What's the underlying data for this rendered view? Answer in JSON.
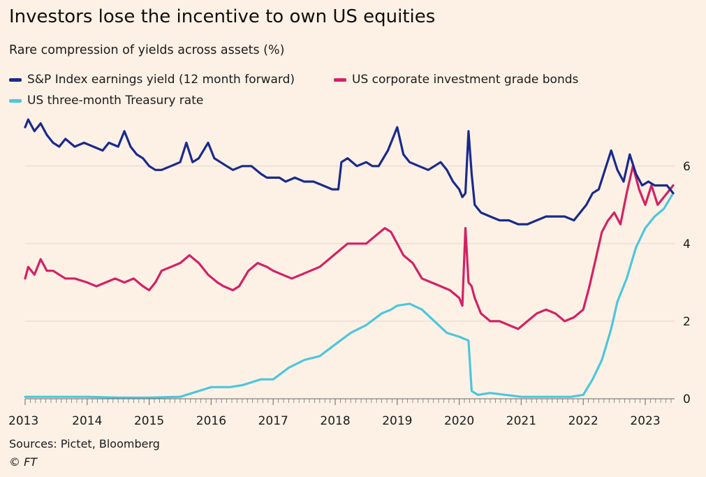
{
  "header": {
    "title": "Investors lose the incentive to own US equities",
    "subtitle": "Rare compression of yields across assets (%)"
  },
  "footer": {
    "sources": "Sources: Pictet, Bloomberg",
    "copyright": "© FT"
  },
  "chart_data": {
    "type": "line",
    "title": "Investors lose the incentive to own US equities",
    "subtitle": "Rare compression of yields across assets (%)",
    "xlabel": "",
    "ylabel": "",
    "xlim": [
      2013.0,
      2023.45
    ],
    "ylim": [
      0,
      7.4
    ],
    "y_ticks": [
      0,
      2,
      4,
      6
    ],
    "y_tick_labels": [
      "0",
      "2",
      "4",
      "6"
    ],
    "y_axis_side": "right",
    "x_ticks": [
      2013,
      2014,
      2015,
      2016,
      2017,
      2018,
      2019,
      2020,
      2021,
      2022,
      2023
    ],
    "x_tick_labels": [
      "2013",
      "2014",
      "2015",
      "2016",
      "2017",
      "2018",
      "2019",
      "2020",
      "2021",
      "2022",
      "2023"
    ],
    "grid": "horizontal",
    "legend_position": "top",
    "background_color": "#fdf1e6",
    "series": [
      {
        "name": "S&P Index earnings yield (12 month forward)",
        "color": "#1a2a8c",
        "x": [
          2013.0,
          2013.05,
          2013.15,
          2013.25,
          2013.35,
          2013.45,
          2013.55,
          2013.65,
          2013.8,
          2013.95,
          2014.1,
          2014.25,
          2014.35,
          2014.5,
          2014.6,
          2014.7,
          2014.8,
          2014.9,
          2015.0,
          2015.1,
          2015.2,
          2015.35,
          2015.5,
          2015.6,
          2015.7,
          2015.8,
          2015.95,
          2016.05,
          2016.15,
          2016.25,
          2016.35,
          2016.5,
          2016.65,
          2016.8,
          2016.9,
          2017.0,
          2017.1,
          2017.2,
          2017.35,
          2017.5,
          2017.65,
          2017.8,
          2017.95,
          2018.05,
          2018.1,
          2018.2,
          2018.35,
          2018.5,
          2018.6,
          2018.7,
          2018.85,
          2018.95,
          2019.0,
          2019.1,
          2019.2,
          2019.35,
          2019.5,
          2019.6,
          2019.7,
          2019.8,
          2019.9,
          2020.0,
          2020.05,
          2020.1,
          2020.15,
          2020.2,
          2020.25,
          2020.35,
          2020.5,
          2020.65,
          2020.8,
          2020.95,
          2021.1,
          2021.25,
          2021.4,
          2021.55,
          2021.7,
          2021.85,
          2021.95,
          2022.05,
          2022.15,
          2022.25,
          2022.35,
          2022.45,
          2022.55,
          2022.65,
          2022.75,
          2022.85,
          2022.95,
          2023.05,
          2023.15,
          2023.25,
          2023.35,
          2023.45
        ],
        "values": [
          7.0,
          7.2,
          6.9,
          7.1,
          6.8,
          6.6,
          6.5,
          6.7,
          6.5,
          6.6,
          6.5,
          6.4,
          6.6,
          6.5,
          6.9,
          6.5,
          6.3,
          6.2,
          6.0,
          5.9,
          5.9,
          6.0,
          6.1,
          6.6,
          6.1,
          6.2,
          6.6,
          6.2,
          6.1,
          6.0,
          5.9,
          6.0,
          6.0,
          5.8,
          5.7,
          5.7,
          5.7,
          5.6,
          5.7,
          5.6,
          5.6,
          5.5,
          5.4,
          5.4,
          6.1,
          6.2,
          6.0,
          6.1,
          6.0,
          6.0,
          6.4,
          6.8,
          7.0,
          6.3,
          6.1,
          6.0,
          5.9,
          6.0,
          6.1,
          5.9,
          5.6,
          5.4,
          5.2,
          5.3,
          6.9,
          5.8,
          5.0,
          4.8,
          4.7,
          4.6,
          4.6,
          4.5,
          4.5,
          4.6,
          4.7,
          4.7,
          4.7,
          4.6,
          4.8,
          5.0,
          5.3,
          5.4,
          5.9,
          6.4,
          5.9,
          5.6,
          6.3,
          5.8,
          5.5,
          5.6,
          5.5,
          5.5,
          5.5,
          5.3
        ]
      },
      {
        "name": "US corporate investment grade bonds",
        "color": "#d42163",
        "x": [
          2013.0,
          2013.05,
          2013.15,
          2013.25,
          2013.35,
          2013.45,
          2013.55,
          2013.65,
          2013.8,
          2014.0,
          2014.15,
          2014.3,
          2014.45,
          2014.6,
          2014.75,
          2014.9,
          2015.0,
          2015.1,
          2015.2,
          2015.35,
          2015.5,
          2015.65,
          2015.8,
          2015.95,
          2016.1,
          2016.2,
          2016.35,
          2016.45,
          2016.6,
          2016.75,
          2016.9,
          2017.0,
          2017.15,
          2017.3,
          2017.45,
          2017.6,
          2017.75,
          2017.9,
          2018.05,
          2018.2,
          2018.35,
          2018.5,
          2018.65,
          2018.8,
          2018.9,
          2019.0,
          2019.1,
          2019.25,
          2019.4,
          2019.55,
          2019.7,
          2019.85,
          2020.0,
          2020.05,
          2020.1,
          2020.15,
          2020.2,
          2020.25,
          2020.35,
          2020.5,
          2020.65,
          2020.8,
          2020.95,
          2021.1,
          2021.25,
          2021.4,
          2021.55,
          2021.7,
          2021.85,
          2022.0,
          2022.1,
          2022.2,
          2022.3,
          2022.4,
          2022.5,
          2022.6,
          2022.7,
          2022.8,
          2022.9,
          2023.0,
          2023.1,
          2023.2,
          2023.3,
          2023.45
        ],
        "values": [
          3.1,
          3.4,
          3.2,
          3.6,
          3.3,
          3.3,
          3.2,
          3.1,
          3.1,
          3.0,
          2.9,
          3.0,
          3.1,
          3.0,
          3.1,
          2.9,
          2.8,
          3.0,
          3.3,
          3.4,
          3.5,
          3.7,
          3.5,
          3.2,
          3.0,
          2.9,
          2.8,
          2.9,
          3.3,
          3.5,
          3.4,
          3.3,
          3.2,
          3.1,
          3.2,
          3.3,
          3.4,
          3.6,
          3.8,
          4.0,
          4.0,
          4.0,
          4.2,
          4.4,
          4.3,
          4.0,
          3.7,
          3.5,
          3.1,
          3.0,
          2.9,
          2.8,
          2.6,
          2.4,
          4.4,
          3.0,
          2.9,
          2.6,
          2.2,
          2.0,
          2.0,
          1.9,
          1.8,
          2.0,
          2.2,
          2.3,
          2.2,
          2.0,
          2.1,
          2.3,
          2.9,
          3.6,
          4.3,
          4.6,
          4.8,
          4.5,
          5.3,
          6.0,
          5.4,
          5.0,
          5.5,
          5.0,
          5.2,
          5.5
        ]
      },
      {
        "name": "US three-month Treasury rate",
        "color": "#4dc6dc",
        "x": [
          2013.0,
          2013.5,
          2014.0,
          2014.5,
          2015.0,
          2015.5,
          2015.9,
          2016.0,
          2016.3,
          2016.5,
          2016.8,
          2017.0,
          2017.25,
          2017.5,
          2017.75,
          2018.0,
          2018.25,
          2018.5,
          2018.75,
          2018.9,
          2019.0,
          2019.2,
          2019.4,
          2019.6,
          2019.8,
          2020.0,
          2020.15,
          2020.2,
          2020.3,
          2020.5,
          2021.0,
          2021.5,
          2021.8,
          2022.0,
          2022.15,
          2022.3,
          2022.45,
          2022.55,
          2022.7,
          2022.85,
          2023.0,
          2023.15,
          2023.3,
          2023.45
        ],
        "values": [
          0.05,
          0.05,
          0.05,
          0.03,
          0.03,
          0.05,
          0.25,
          0.3,
          0.3,
          0.35,
          0.5,
          0.5,
          0.8,
          1.0,
          1.1,
          1.4,
          1.7,
          1.9,
          2.2,
          2.3,
          2.4,
          2.45,
          2.3,
          2.0,
          1.7,
          1.6,
          1.5,
          0.2,
          0.1,
          0.15,
          0.05,
          0.05,
          0.05,
          0.1,
          0.5,
          1.0,
          1.8,
          2.5,
          3.1,
          3.9,
          4.4,
          4.7,
          4.9,
          5.3
        ]
      }
    ]
  }
}
